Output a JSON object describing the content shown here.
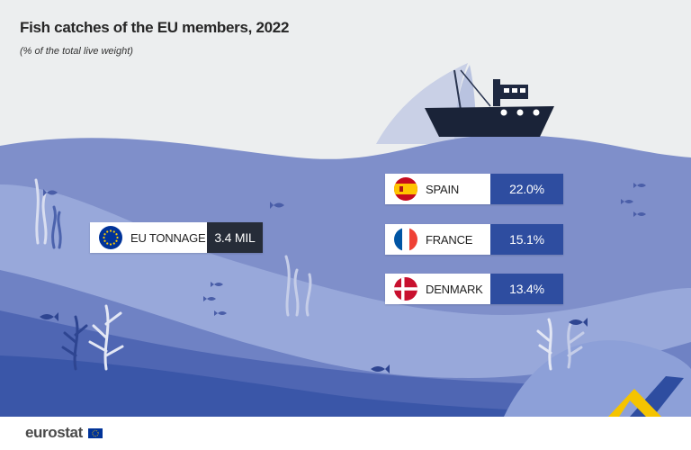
{
  "title": "Fish catches of the EU members, 2022",
  "subtitle": "(% of the total live weight)",
  "eu_card": {
    "label": "EU TONNAGE",
    "value": "3.4 MIL"
  },
  "colors": {
    "accent_blue": "#2e4da0",
    "dark_value_bg": "#262c38",
    "flag_spain_red": "#c60b1e",
    "flag_spain_yellow": "#ffc400",
    "flag_france_blue": "#0055a4",
    "flag_france_red": "#ef4135",
    "flag_denmark_red": "#c8102e"
  },
  "icons": {
    "eu_flag": "eu-flag-icon",
    "spain_flag": "spain-flag-icon",
    "france_flag": "france-flag-icon",
    "denmark_flag": "denmark-flag-icon",
    "ship": "fishing-boat-icon",
    "fish": "fish-icon",
    "seaweed": "seaweed-icon"
  },
  "footer": {
    "logo_text": "eurostat"
  },
  "chart_data": {
    "type": "table",
    "title": "Fish catches of the EU members, 2022",
    "subtitle": "(% of the total live weight)",
    "rows": [
      {
        "country": "SPAIN",
        "share_label": "22.0%",
        "share": 22.0
      },
      {
        "country": "FRANCE",
        "share_label": "15.1%",
        "share": 15.1
      },
      {
        "country": "DENMARK",
        "share_label": "13.4%",
        "share": 13.4
      }
    ],
    "total": {
      "label": "EU TONNAGE",
      "value_label": "3.4 MIL"
    }
  }
}
